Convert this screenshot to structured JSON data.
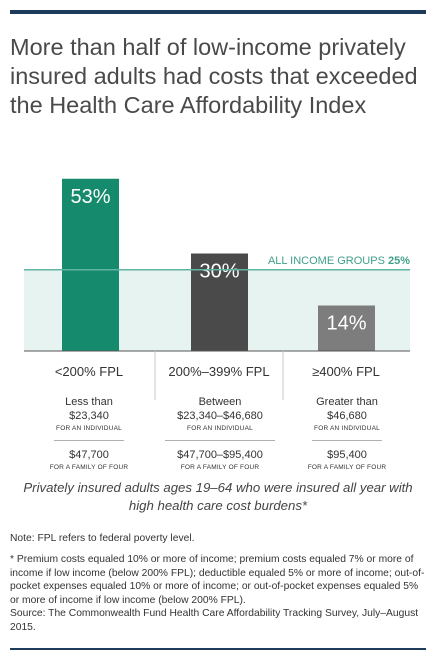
{
  "title": "More than half of low-income privately insured adults had costs that exceeded the Health Care Affordability Index",
  "chart_data": {
    "type": "bar",
    "categories": [
      "<200% FPL",
      "200%–399% FPL",
      "≥400% FPL"
    ],
    "values": [
      53,
      30,
      14
    ],
    "value_labels": [
      "53%",
      "30%",
      "14%"
    ],
    "reference_line": {
      "value": 25,
      "label_prefix": "ALL INCOME GROUPS",
      "label_value": "25%"
    },
    "ylim": [
      0,
      60
    ],
    "grid": false,
    "colors": {
      "bar_low": "#168a6c",
      "bar_mid": "#4a4a4a",
      "bar_high": "#7d7d7d",
      "band": "#e7f3f1",
      "reference": "#5fb3a1"
    }
  },
  "columns": [
    {
      "line1": "Less than",
      "line2": "$23,340",
      "sub": "FOR AN INDIVIDUAL",
      "family_value": "$47,700",
      "family_sub": "FOR A FAMILY OF FOUR"
    },
    {
      "line1": "Between",
      "line2": "$23,340–$46,680",
      "sub": "FOR AN INDIVIDUAL",
      "family_value": "$47,700–$95,400",
      "family_sub": "FOR A FAMILY OF FOUR"
    },
    {
      "line1": "Greater than",
      "line2": "$46,680",
      "sub": "FOR AN INDIVIDUAL",
      "family_value": "$95,400",
      "family_sub": "FOR A FAMILY OF FOUR"
    }
  ],
  "caption": "Privately insured adults ages 19–64 who were insured all year with high health care cost burdens*",
  "notes": {
    "note": "Note: FPL refers to federal poverty level.",
    "footnote": "* Premium costs equaled 10% or more of income; premium costs equaled 7% or more of income if low income (below 200% FPL); deductible equaled 5% or more of income; out-of-pocket expenses equaled 10% or more of income; or out-of-pocket expenses equaled 5% or more of income if low income (below 200% FPL).",
    "source": "Source: The Commonwealth Fund Health Care Affordability Tracking Survey, July–August 2015."
  }
}
